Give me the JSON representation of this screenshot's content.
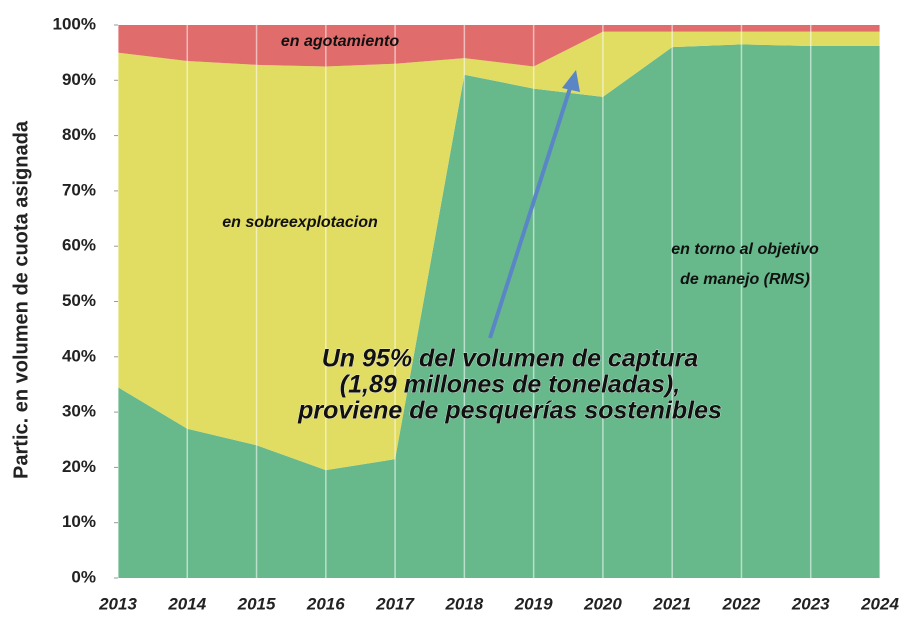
{
  "chart_data": {
    "type": "stacked-area",
    "y_label": "Partic. en volumen de cuota asignada",
    "x": [
      2013,
      2014,
      2015,
      2016,
      2017,
      2018,
      2019,
      2020,
      2021,
      2022,
      2023,
      2024
    ],
    "xlim": [
      2013,
      2024
    ],
    "xticks": [
      2013,
      2014,
      2015,
      2016,
      2017,
      2018,
      2019,
      2020,
      2021,
      2022,
      2023,
      2024
    ],
    "ylim": [
      0,
      100
    ],
    "yticks": [
      {
        "value": 0,
        "label": "0%"
      },
      {
        "value": 10,
        "label": "10%"
      },
      {
        "value": 20,
        "label": "20%"
      },
      {
        "value": 30,
        "label": "30%"
      },
      {
        "value": 40,
        "label": "40%"
      },
      {
        "value": 50,
        "label": "50%"
      },
      {
        "value": 60,
        "label": "60%"
      },
      {
        "value": 70,
        "label": "70%"
      },
      {
        "value": 80,
        "label": "80%"
      },
      {
        "value": 90,
        "label": "90%"
      },
      {
        "value": 100,
        "label": "100%"
      }
    ],
    "grid": "x",
    "series": [
      {
        "name": "en torno al objetivo de manejo (RMS)",
        "color": "#67b98b",
        "values": [
          34.5,
          27,
          24,
          19.5,
          21.5,
          91,
          88.5,
          87,
          96,
          96.5,
          96.2,
          96.2
        ]
      },
      {
        "name": "en  sobreexplotacion",
        "color": "#e1dc62",
        "values": [
          60.5,
          66.5,
          68.8,
          73,
          71.5,
          3,
          4,
          11.8,
          2.8,
          2.3,
          2.6,
          2.6
        ]
      },
      {
        "name": "en agotamiento",
        "color": "#e06c6c",
        "values": [
          5,
          6.5,
          7.2,
          7.5,
          7,
          6,
          7.5,
          1.2,
          1.2,
          1.2,
          1.2,
          1.2
        ]
      }
    ],
    "annotation": [
      "Un 95% del volumen de captura",
      "(1,89 millones de  toneladas),",
      "proviene de pesquerías sostenibles"
    ]
  }
}
